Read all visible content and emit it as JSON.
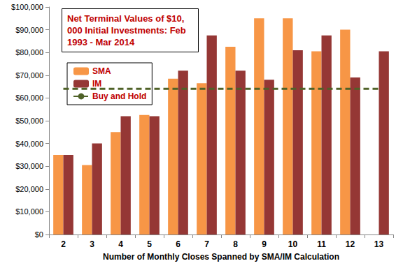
{
  "chart_data": {
    "type": "bar",
    "title": "Net Terminal Values of $10,000 Initial Investments: Feb 1993 - Mar 2014",
    "x_label": "Number of Monthly Closes Spanned by SMA/IM Calculation",
    "categories": [
      "2",
      "3",
      "4",
      "5",
      "6",
      "7",
      "8",
      "9",
      "10",
      "11",
      "12",
      "13"
    ],
    "series": [
      {
        "name": "SMA",
        "type": "bar",
        "color": "#f79646",
        "values": [
          35000,
          30500,
          45000,
          52500,
          68500,
          66500,
          82500,
          95000,
          95000,
          80500,
          90000,
          null
        ]
      },
      {
        "name": "IM",
        "type": "bar",
        "color": "#953735",
        "values": [
          35000,
          40000,
          52000,
          52000,
          72000,
          87500,
          72000,
          68000,
          81000,
          87500,
          69000,
          80500
        ]
      },
      {
        "name": "Buy and Hold",
        "type": "line",
        "color": "#4f6228",
        "line_style": "dashed",
        "values": [
          64000,
          64000,
          64000,
          64000,
          64000,
          64000,
          64000,
          64000,
          64000,
          64000,
          64000,
          64000
        ]
      }
    ],
    "ylim": [
      0,
      100000
    ],
    "yticks": [
      {
        "value": 0,
        "label": "$0"
      },
      {
        "value": 10000,
        "label": "$10,000"
      },
      {
        "value": 20000,
        "label": "$20,000"
      },
      {
        "value": 30000,
        "label": "$30,000"
      },
      {
        "value": 40000,
        "label": "$40,000"
      },
      {
        "value": 50000,
        "label": "$50,000"
      },
      {
        "value": 60000,
        "label": "$60,000"
      },
      {
        "value": 70000,
        "label": "$70,000"
      },
      {
        "value": 80000,
        "label": "$80,000"
      },
      {
        "value": 90000,
        "label": "$90,000"
      },
      {
        "value": 100000,
        "label": "$100,000"
      }
    ],
    "grid": false,
    "legend": "upper left"
  }
}
